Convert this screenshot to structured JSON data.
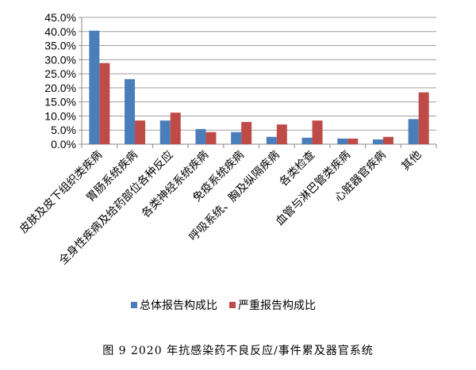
{
  "chart_data": {
    "type": "bar",
    "categories": [
      "皮肤及皮下组织类疾病",
      "胃肠系统疾病",
      "全身性疾病及给药部位各种反应",
      "各类神经系统疾病",
      "免疫系统疾病",
      "呼吸系统、胸及纵隔疾病",
      "各类检查",
      "血管与淋巴管类疾病",
      "心脏器官疾病",
      "其他"
    ],
    "series": [
      {
        "name": "总体报告构成比",
        "color": "#4a7ebb",
        "values": [
          40.3,
          23.1,
          8.4,
          5.4,
          4.3,
          2.6,
          2.3,
          2.0,
          1.7,
          8.9
        ]
      },
      {
        "name": "严重报告构成比",
        "color": "#be4b48",
        "values": [
          28.8,
          8.4,
          11.2,
          4.3,
          7.9,
          7.0,
          8.4,
          2.0,
          2.6,
          18.4
        ]
      }
    ],
    "ylim": [
      0,
      45
    ],
    "yticks": [
      "0.0%",
      "5.0%",
      "10.0%",
      "15.0%",
      "20.0%",
      "25.0%",
      "30.0%",
      "35.0%",
      "40.0%",
      "45.0%"
    ],
    "grid": true,
    "legend": "bottom"
  },
  "caption": "图 9   2020 年抗感染药不良反应/事件累及器官系统"
}
